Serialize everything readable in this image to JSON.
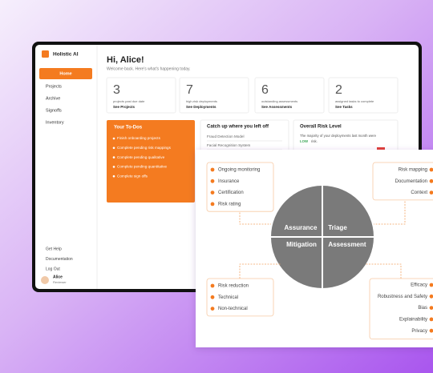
{
  "sidebar": {
    "brand": "Holistic AI",
    "nav": [
      "Home",
      "Projects",
      "Archive",
      "Signoffs",
      "Inventory"
    ],
    "footer_links": [
      "Get Help",
      "Documentation",
      "Log Out"
    ],
    "user": {
      "name": "Alice",
      "role": "Reviewer"
    }
  },
  "header": {
    "title": "Hi, Alice!",
    "subtitle": "Welcome back. Here's what's happening today."
  },
  "stats": [
    {
      "value": 3,
      "label": "projects past due date",
      "link": "See Projects"
    },
    {
      "value": 7,
      "label": "high-risk deployments",
      "link": "See Deployments"
    },
    {
      "value": 6,
      "label": "outstanding assessments",
      "link": "See Assessments"
    },
    {
      "value": 2,
      "label": "assigned tasks to complete",
      "link": "See Tasks"
    }
  ],
  "todos": {
    "title": "Your To-Dos",
    "items": [
      "Finish onboarding projects",
      "Complete pending risk mappings",
      "Complete pending qualitative",
      "Complete pending quantitative",
      "Complete sign offs"
    ]
  },
  "catch_up": {
    "title": "Catch up where you left off",
    "items": [
      "Fraud Detection Model",
      "Facial Recognition System"
    ]
  },
  "risk_level": {
    "title": "Overall Risk Level",
    "text": "The majority of your deployments last month were",
    "level": "LOW",
    "text_after": "risk."
  },
  "diagram": {
    "quadrants": [
      "Assurance",
      "Triage",
      "Mitigation",
      "Assessment"
    ],
    "top_left": [
      "Ongoing monitoring",
      "Insurance",
      "Certification",
      "Risk rating"
    ],
    "top_right": [
      "Risk mapping",
      "Documentation",
      "Context"
    ],
    "bottom_left": [
      "Risk reduction",
      "Technical",
      "Non-technical"
    ],
    "bottom_right": [
      "Efficacy",
      "Robustness and Safety",
      "Bias",
      "Explainability",
      "Privacy"
    ]
  }
}
